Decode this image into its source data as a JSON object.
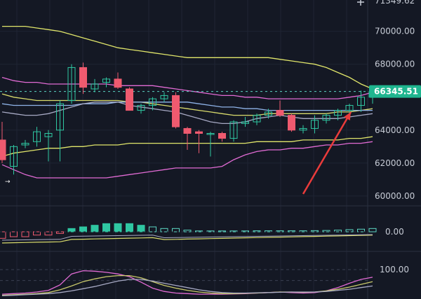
{
  "chart_data": {
    "type": "candlestick",
    "instrument_price": {
      "y_tick_labels": [
        "70000.00",
        "68000.00",
        "64000.00",
        "62000.00",
        "60000.00"
      ],
      "y_ticks": [
        70000,
        68000,
        64000,
        62000,
        60000
      ],
      "top_label": "71349.62",
      "current_price_label": "66345.51",
      "current_price": 66345.51,
      "ylim": [
        59400,
        71900
      ]
    },
    "candles": [
      {
        "o": 63400,
        "h": 64500,
        "l": 62000,
        "c": 62200
      },
      {
        "o": 61800,
        "h": 63100,
        "l": 61300,
        "c": 63000
      },
      {
        "o": 63100,
        "h": 63400,
        "l": 62900,
        "c": 63200
      },
      {
        "o": 63300,
        "h": 64200,
        "l": 63000,
        "c": 63900
      },
      {
        "o": 63600,
        "h": 64000,
        "l": 62100,
        "c": 63800
      },
      {
        "o": 64000,
        "h": 65800,
        "l": 62100,
        "c": 65600
      },
      {
        "o": 65800,
        "h": 68000,
        "l": 65600,
        "c": 67800
      },
      {
        "o": 67800,
        "h": 68100,
        "l": 66200,
        "c": 66600
      },
      {
        "o": 66500,
        "h": 67100,
        "l": 66300,
        "c": 66800
      },
      {
        "o": 66900,
        "h": 67200,
        "l": 66600,
        "c": 67100
      },
      {
        "o": 67100,
        "h": 67500,
        "l": 66500,
        "c": 66600
      },
      {
        "o": 66500,
        "h": 66600,
        "l": 65200,
        "c": 65200
      },
      {
        "o": 65200,
        "h": 65600,
        "l": 65000,
        "c": 65500
      },
      {
        "o": 65500,
        "h": 66000,
        "l": 65200,
        "c": 65900
      },
      {
        "o": 65900,
        "h": 66300,
        "l": 65700,
        "c": 66100
      },
      {
        "o": 66100,
        "h": 66300,
        "l": 64100,
        "c": 64200
      },
      {
        "o": 64100,
        "h": 64200,
        "l": 62800,
        "c": 63800
      },
      {
        "o": 63900,
        "h": 64000,
        "l": 62600,
        "c": 63800
      },
      {
        "o": 63800,
        "h": 63900,
        "l": 62400,
        "c": 63800
      },
      {
        "o": 63800,
        "h": 63900,
        "l": 63300,
        "c": 63500
      },
      {
        "o": 63500,
        "h": 64600,
        "l": 63300,
        "c": 64500
      },
      {
        "o": 64400,
        "h": 64800,
        "l": 64200,
        "c": 64500
      },
      {
        "o": 64500,
        "h": 65000,
        "l": 64300,
        "c": 64900
      },
      {
        "o": 64900,
        "h": 65300,
        "l": 64700,
        "c": 65100
      },
      {
        "o": 65200,
        "h": 65800,
        "l": 64800,
        "c": 64900
      },
      {
        "o": 64900,
        "h": 65000,
        "l": 63900,
        "c": 64000
      },
      {
        "o": 64000,
        "h": 64300,
        "l": 63800,
        "c": 64100
      },
      {
        "o": 64100,
        "h": 64900,
        "l": 63800,
        "c": 64600
      },
      {
        "o": 64600,
        "h": 65000,
        "l": 64400,
        "c": 64900
      },
      {
        "o": 64900,
        "h": 65300,
        "l": 64600,
        "c": 65200
      },
      {
        "o": 65200,
        "h": 65600,
        "l": 64900,
        "c": 65500
      },
      {
        "o": 65500,
        "h": 66400,
        "l": 65100,
        "c": 66000
      },
      {
        "o": 66000,
        "h": 66400,
        "l": 65600,
        "c": 66345
      }
    ],
    "overlay_lines": [
      {
        "color": "#e0e56a",
        "values": [
          70300,
          70300,
          70300,
          70200,
          70100,
          70000,
          69800,
          69600,
          69400,
          69200,
          69000,
          68900,
          68800,
          68700,
          68600,
          68500,
          68400,
          68400,
          68400,
          68400,
          68400,
          68400,
          68400,
          68400,
          68300,
          68200,
          68100,
          68000,
          67800,
          67500,
          67200,
          66800,
          66500
        ]
      },
      {
        "color": "#e0e56a",
        "values": [
          62400,
          62600,
          62700,
          62800,
          62900,
          62900,
          63000,
          63000,
          63100,
          63100,
          63100,
          63200,
          63200,
          63200,
          63200,
          63200,
          63200,
          63200,
          63200,
          63200,
          63200,
          63200,
          63300,
          63300,
          63300,
          63300,
          63400,
          63400,
          63400,
          63400,
          63500,
          63500,
          63600
        ]
      },
      {
        "color": "#e16bd4",
        "values": [
          67200,
          67000,
          66900,
          66900,
          66800,
          66800,
          66800,
          66800,
          66800,
          66800,
          66700,
          66700,
          66700,
          66700,
          66600,
          66500,
          66400,
          66300,
          66200,
          66100,
          66100,
          66000,
          66000,
          65900,
          65900,
          65900,
          65900,
          65900,
          65900,
          65900,
          66000,
          66100,
          66300
        ]
      },
      {
        "color": "#e16bd4",
        "values": [
          61900,
          61600,
          61300,
          61100,
          61100,
          61100,
          61100,
          61100,
          61100,
          61100,
          61200,
          61300,
          61400,
          61500,
          61600,
          61700,
          61700,
          61700,
          61700,
          61800,
          62200,
          62500,
          62700,
          62800,
          62800,
          62900,
          62900,
          63000,
          63100,
          63100,
          63200,
          63200,
          63300
        ]
      },
      {
        "color": "#d9db6c",
        "values": [
          66200,
          66000,
          65900,
          65800,
          65800,
          65800,
          65800,
          65800,
          65800,
          65800,
          65800,
          65700,
          65700,
          65600,
          65500,
          65400,
          65300,
          65200,
          65100,
          65000,
          64900,
          64900,
          64900,
          65000,
          65000,
          65000,
          65000,
          65000,
          65000,
          65100,
          65100,
          65200,
          65300
        ]
      },
      {
        "color": "#8fb3e8",
        "values": [
          65600,
          65500,
          65500,
          65500,
          65500,
          65500,
          65500,
          65600,
          65600,
          65600,
          65700,
          65700,
          65700,
          65700,
          65700,
          65700,
          65700,
          65600,
          65500,
          65400,
          65400,
          65300,
          65300,
          65200,
          65200,
          65200,
          65200,
          65200,
          65200,
          65200,
          65200,
          65200,
          65200
        ]
      },
      {
        "color": "#a7a9c4",
        "values": [
          65100,
          65000,
          64900,
          64900,
          65000,
          65200,
          65400,
          65600,
          65700,
          65700,
          65700,
          65500,
          65400,
          65300,
          65200,
          65100,
          64900,
          64700,
          64500,
          64400,
          64400,
          64500,
          64700,
          64800,
          64900,
          64800,
          64700,
          64700,
          64700,
          64700,
          64800,
          64900,
          65000
        ]
      }
    ],
    "histogram": {
      "zero_label": "0.00",
      "values": [
        -4,
        -3,
        -3,
        -2,
        -2,
        -1,
        2,
        3,
        4,
        5,
        5,
        5,
        4,
        3,
        2,
        2,
        1,
        0.5,
        0.5,
        0.5,
        0.5,
        0.5,
        0.6,
        0.6,
        0.6,
        0.6,
        0.6,
        0.7,
        0.8,
        1.0,
        1.3,
        1.6,
        2.0
      ]
    },
    "oscillator": {
      "level_label": "100.00",
      "lines": [
        {
          "color": "#e16bd4",
          "values": [
            10,
            12,
            14,
            18,
            24,
            44,
            84,
            96,
            94,
            90,
            84,
            74,
            54,
            32,
            20,
            14,
            12,
            10,
            10,
            10,
            11,
            12,
            14,
            16,
            18,
            16,
            14,
            16,
            22,
            34,
            50,
            64,
            72
          ]
        },
        {
          "color": "#c9c96a",
          "values": [
            6,
            8,
            10,
            12,
            16,
            26,
            40,
            56,
            66,
            74,
            78,
            78,
            70,
            56,
            42,
            32,
            24,
            18,
            14,
            12,
            12,
            13,
            14,
            16,
            18,
            18,
            17,
            18,
            22,
            28,
            36,
            46,
            56
          ]
        },
        {
          "color": "#a7a9c4",
          "values": [
            4,
            6,
            8,
            10,
            12,
            16,
            22,
            30,
            38,
            48,
            58,
            64,
            64,
            58,
            50,
            42,
            34,
            26,
            20,
            16,
            14,
            14,
            15,
            16,
            17,
            18,
            18,
            18,
            20,
            24,
            28,
            34,
            40
          ]
        }
      ]
    }
  }
}
